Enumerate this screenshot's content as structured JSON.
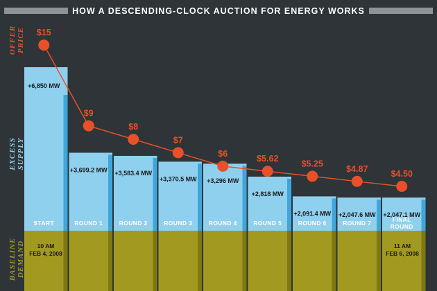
{
  "title": "HOW A DESCENDING-CLOCK AUCTION FOR ENERGY WORKS",
  "axis_labels": {
    "offer_price": [
      "OFFER",
      "PRICE"
    ],
    "excess_supply": [
      "EXCESS",
      "SUPPLY"
    ],
    "baseline_demand": [
      "BASELINE",
      "DEMAND"
    ]
  },
  "start_time": [
    "10 AM",
    "FEB 4, 2008"
  ],
  "end_time": [
    "11 AM",
    "FEB 6, 2008"
  ],
  "colors": {
    "background": "#2e3437",
    "supply": "#8fd0ee",
    "supply_side": "#3fa6dc",
    "demand": "#a29a20",
    "demand_side": "#7f7812",
    "price": "#e8502a",
    "title_bar": "#8f9396"
  },
  "chart_data": {
    "type": "bar",
    "categories": [
      "START",
      "ROUND 1",
      "ROUND 2",
      "ROUND 3",
      "ROUND 4",
      "ROUND 5",
      "ROUND 6",
      "ROUND 7",
      "FINAL ROUND"
    ],
    "excess_supply_mw": [
      6850,
      3699.2,
      3583.4,
      3370.5,
      3296,
      2818,
      2091.4,
      2047.6,
      2047.1
    ],
    "excess_supply_labels": [
      "+6,850 MW",
      "+3,699.2 MW",
      "+3,583.4 MW",
      "+3,370.5 MW",
      "+3,296 MW",
      "+2,818 MW",
      "+2,091.4 MW",
      "+2,047.6 MW",
      "+2,047.1 MW"
    ],
    "offer_price": [
      15,
      9,
      8,
      7,
      6,
      5.62,
      5.25,
      4.87,
      4.5
    ],
    "offer_price_labels": [
      "$15",
      "$9",
      "$8",
      "$7",
      "$6",
      "$5.62",
      "$5.25",
      "$4.87",
      "$4.50"
    ]
  }
}
